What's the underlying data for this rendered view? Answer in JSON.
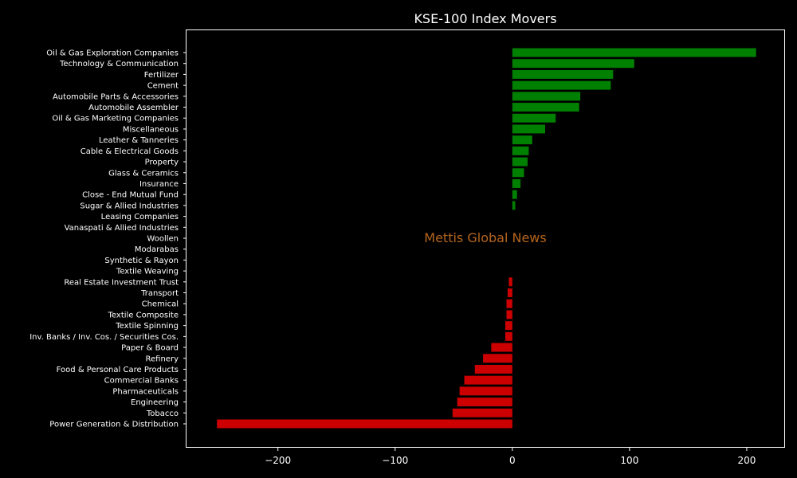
{
  "chart_data": {
    "type": "bar",
    "orientation": "horizontal",
    "title": "KSE-100 Index Movers",
    "xlabel": "",
    "ylabel": "",
    "xlim": [
      -278,
      232
    ],
    "xticks": [
      -200,
      -100,
      0,
      100,
      200
    ],
    "xtick_labels": [
      "−200",
      "−100",
      "0",
      "100",
      "200"
    ],
    "grid": false,
    "positive_color": "#008000",
    "negative_color": "#cc0000",
    "categories": [
      "Oil & Gas Exploration Companies",
      "Technology & Communication",
      "Fertilizer",
      "Cement",
      "Automobile Parts & Accessories",
      "Automobile Assembler",
      "Oil & Gas Marketing Companies",
      "Miscellaneous",
      "Leather & Tanneries",
      "Cable & Electrical Goods",
      "Property",
      "Glass & Ceramics",
      "Insurance",
      "Close - End Mutual Fund",
      "Sugar & Allied Industries",
      "Leasing Companies",
      "Vanaspati & Allied Industries",
      "Woollen",
      "Modarabas",
      "Synthetic & Rayon",
      "Textile Weaving",
      "Real Estate Investment Trust",
      "Transport",
      "Chemical",
      "Textile Composite",
      "Textile Spinning",
      "Inv. Banks / Inv. Cos. / Securities Cos.",
      "Paper & Board",
      "Refinery",
      "Food & Personal Care Products",
      "Commercial Banks",
      "Pharmaceuticals",
      "Engineering",
      "Tobacco",
      "Power Generation & Distribution"
    ],
    "values": [
      208,
      104,
      86,
      84,
      58,
      57,
      37,
      28,
      17,
      14,
      13,
      10,
      7,
      4,
      2.5,
      0,
      0,
      0,
      0,
      0,
      0,
      -3,
      -4,
      -5,
      -5,
      -6,
      -6,
      -18,
      -25,
      -32,
      -41,
      -45,
      -47,
      -51,
      -252
    ]
  },
  "watermark": {
    "text": "Mettis Global News",
    "color": "#b5651d"
  }
}
